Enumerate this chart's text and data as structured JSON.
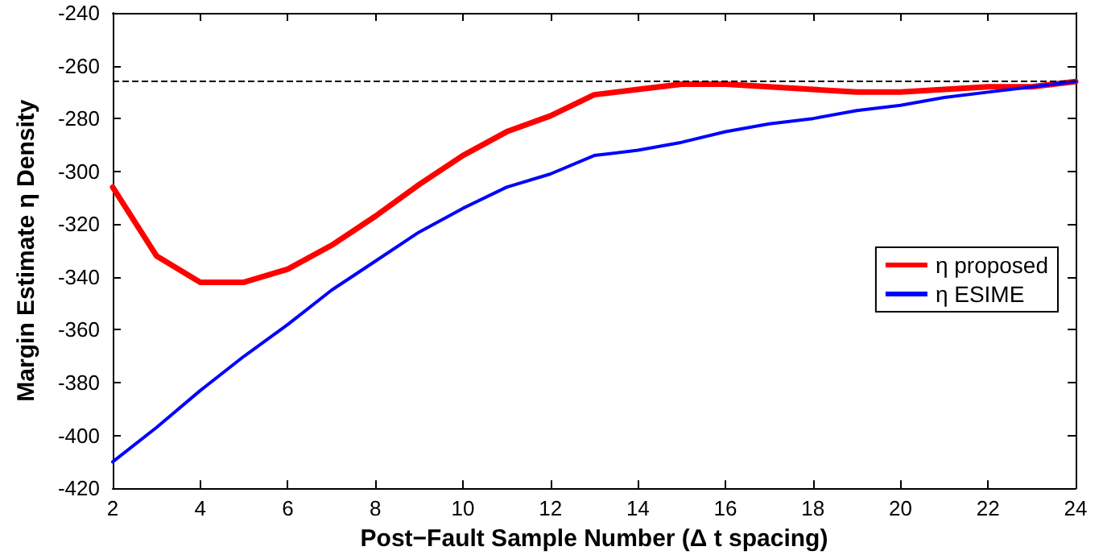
{
  "chart_data": {
    "type": "line",
    "xlabel": "Post−Fault Sample Number (Δ t spacing)",
    "ylabel": "Margin Estimate η Density",
    "x": [
      2,
      3,
      4,
      5,
      6,
      7,
      8,
      9,
      10,
      11,
      12,
      13,
      14,
      15,
      16,
      17,
      18,
      19,
      20,
      21,
      22,
      23,
      24
    ],
    "series": [
      {
        "name": "η proposed",
        "color": "#ff0000",
        "values": [
          -306,
          -332,
          -342,
          -342,
          -337,
          -328,
          -317,
          -305,
          -294,
          -285,
          -279,
          -271,
          -269,
          -267,
          -267,
          -268,
          -269,
          -270,
          -270,
          -269,
          -268,
          -268,
          -266
        ]
      },
      {
        "name": "η ESIME",
        "color": "#0000ff",
        "values": [
          -410,
          -397,
          -383,
          -370,
          -358,
          -345,
          -334,
          -323,
          -314,
          -306,
          -301,
          -294,
          -292,
          -289,
          -285,
          -282,
          -280,
          -277,
          -275,
          -272,
          -270,
          -268,
          -266
        ]
      }
    ],
    "xlim": [
      2,
      24
    ],
    "xticks": [
      2,
      4,
      6,
      8,
      10,
      12,
      14,
      16,
      18,
      20,
      22,
      24
    ],
    "ylim": [
      -420,
      -240
    ],
    "yticks": [
      -420,
      -400,
      -380,
      -360,
      -340,
      -320,
      -300,
      -280,
      -260,
      -240
    ],
    "ref_lines": [
      {
        "axis": "y",
        "value": -266,
        "color": "#000000",
        "line_style": "dashed"
      }
    ],
    "grid": false,
    "legend": "right",
    "marker": "none",
    "line_style": "solid"
  }
}
